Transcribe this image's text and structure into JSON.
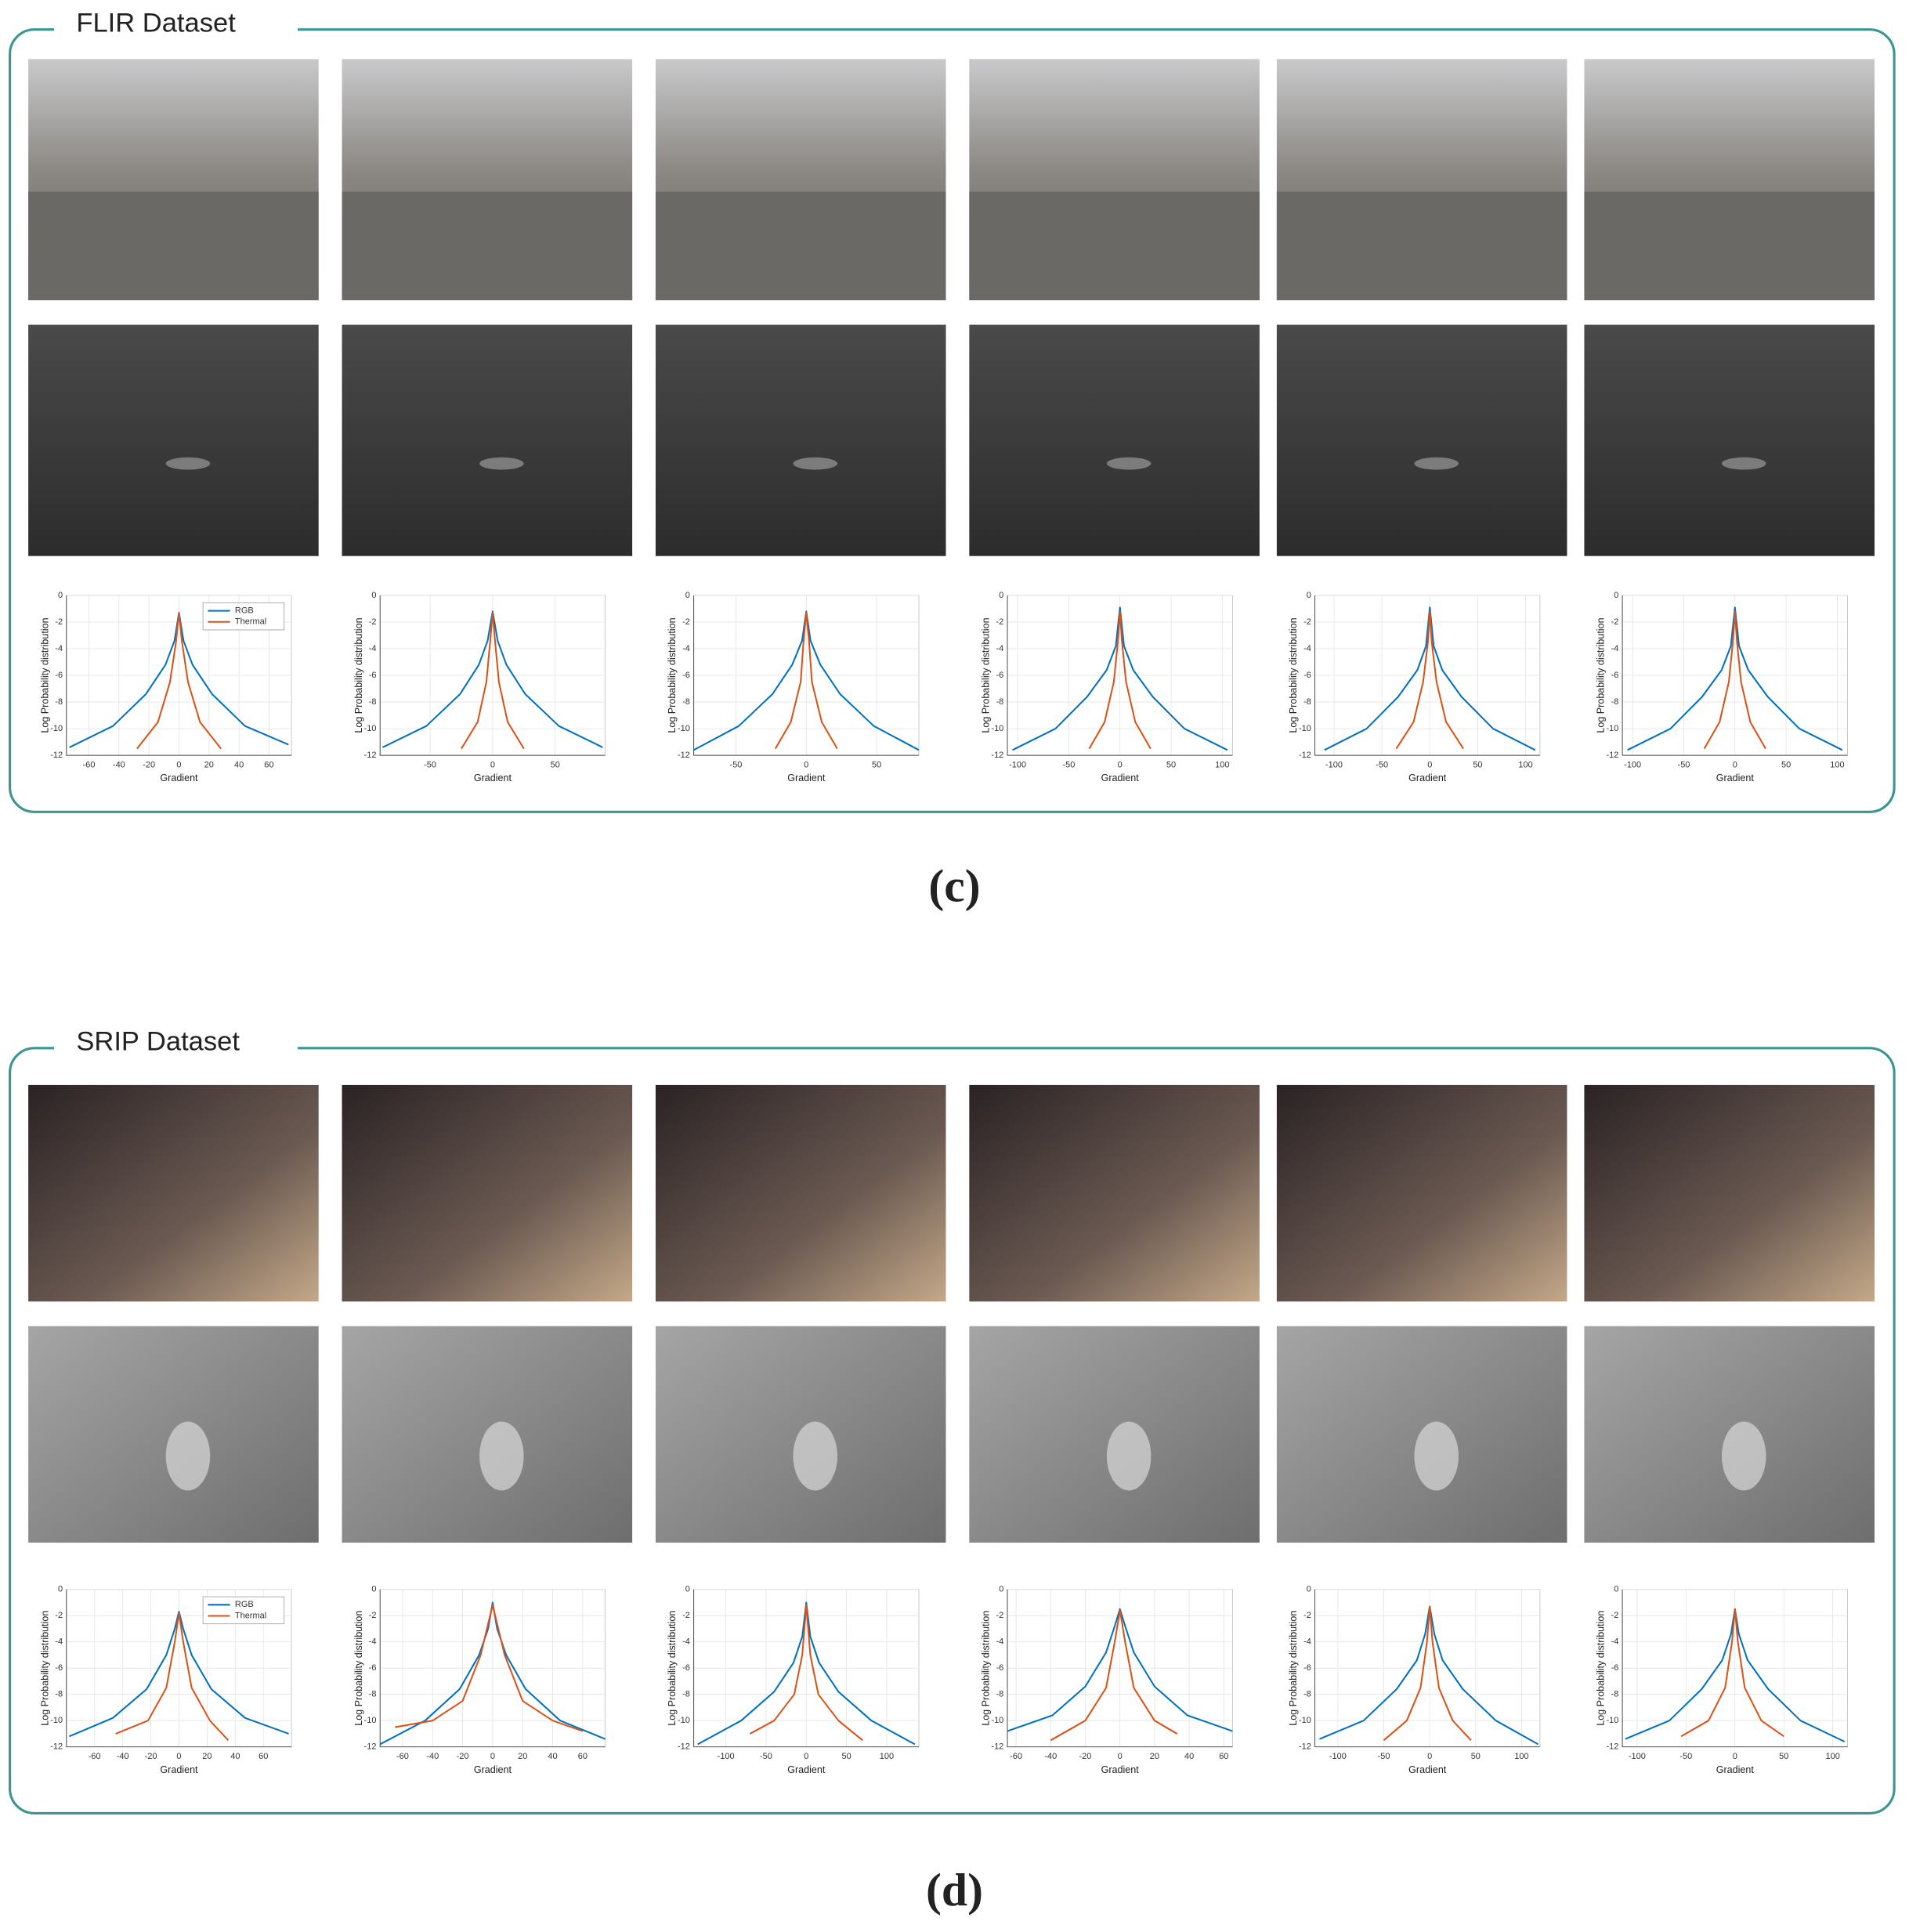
{
  "panels": [
    {
      "title": "FLIR Dataset",
      "caption": "(c)"
    },
    {
      "title": "SRIP Dataset",
      "caption": "(d)"
    }
  ],
  "chart_data": [
    {
      "type": "line",
      "y_label": "Log Probability distribution",
      "x_label": "Gradient",
      "legend": "northeast",
      "xlim": [
        -75,
        75
      ],
      "xticks": [
        -60,
        -40,
        -20,
        0,
        20,
        40,
        60
      ],
      "ylim": [
        -12,
        0
      ],
      "yticks": [
        0,
        -2,
        -4,
        -6,
        -8,
        -10,
        -12
      ],
      "grid": true,
      "series": [
        {
          "name": "RGB",
          "color": "#0072BD",
          "x": [
            -73,
            -44,
            -22,
            -9,
            -3,
            0,
            3,
            9,
            22,
            44,
            73
          ],
          "values": [
            -11.4,
            -9.8,
            -7.4,
            -5.2,
            -3.4,
            -1.3,
            -3.4,
            -5.2,
            -7.4,
            -9.8,
            -11.2
          ]
        },
        {
          "name": "Thermal",
          "color": "#D95319",
          "x": [
            -28,
            -14,
            -6,
            -2,
            0,
            2,
            6,
            14,
            28
          ],
          "values": [
            -11.5,
            -9.5,
            -6.5,
            -3.5,
            -1.3,
            -3.5,
            -6.5,
            -9.5,
            -11.5
          ]
        }
      ]
    },
    {
      "type": "line",
      "y_label": "Log Probability distribution",
      "x_label": "Gradient",
      "xlim": [
        -90,
        90
      ],
      "xticks": [
        -50,
        0,
        50
      ],
      "ylim": [
        -12,
        0
      ],
      "yticks": [
        0,
        -2,
        -4,
        -6,
        -8,
        -10,
        -12
      ],
      "grid": true,
      "series": [
        {
          "name": "RGB",
          "color": "#0072BD",
          "x": [
            -88,
            -53,
            -26,
            -11,
            -4,
            0,
            4,
            11,
            26,
            53,
            88
          ],
          "values": [
            -11.4,
            -9.8,
            -7.4,
            -5.2,
            -3.4,
            -1.2,
            -3.4,
            -5.2,
            -7.4,
            -9.8,
            -11.4
          ]
        },
        {
          "name": "Thermal",
          "color": "#D95319",
          "x": [
            -25,
            -12,
            -5,
            -2,
            0,
            2,
            5,
            12,
            25
          ],
          "values": [
            -11.5,
            -9.5,
            -6.5,
            -3.5,
            -1.3,
            -3.5,
            -6.5,
            -9.5,
            -11.5
          ]
        }
      ]
    },
    {
      "type": "line",
      "y_label": "Log Probability distribution",
      "x_label": "Gradient",
      "xlim": [
        -80,
        80
      ],
      "xticks": [
        -50,
        0,
        50
      ],
      "ylim": [
        -12,
        0
      ],
      "yticks": [
        0,
        -2,
        -4,
        -6,
        -8,
        -10,
        -12
      ],
      "grid": true,
      "series": [
        {
          "name": "RGB",
          "color": "#0072BD",
          "x": [
            -80,
            -48,
            -24,
            -10,
            -3,
            0,
            3,
            10,
            24,
            48,
            80
          ],
          "values": [
            -11.6,
            -9.8,
            -7.4,
            -5.2,
            -3.4,
            -1.2,
            -3.4,
            -5.2,
            -7.4,
            -9.8,
            -11.6
          ]
        },
        {
          "name": "Thermal",
          "color": "#D95319",
          "x": [
            -22,
            -11,
            -4,
            -2,
            0,
            2,
            4,
            11,
            22
          ],
          "values": [
            -11.5,
            -9.5,
            -6.5,
            -3.5,
            -1.3,
            -3.5,
            -6.5,
            -9.5,
            -11.5
          ]
        }
      ]
    },
    {
      "type": "line",
      "y_label": "Log Probability distribution",
      "x_label": "Gradient",
      "xlim": [
        -110,
        110
      ],
      "xticks": [
        -100,
        -50,
        0,
        50,
        100
      ],
      "ylim": [
        -12,
        0
      ],
      "yticks": [
        0,
        -2,
        -4,
        -6,
        -8,
        -10,
        -12
      ],
      "grid": true,
      "series": [
        {
          "name": "RGB",
          "color": "#0072BD",
          "x": [
            -105,
            -63,
            -32,
            -13,
            -4,
            0,
            4,
            13,
            32,
            63,
            105
          ],
          "values": [
            -11.6,
            -10,
            -7.6,
            -5.6,
            -3.8,
            -0.9,
            -3.8,
            -5.6,
            -7.6,
            -10,
            -11.6
          ]
        },
        {
          "name": "Thermal",
          "color": "#D95319",
          "x": [
            -30,
            -15,
            -6,
            -2,
            0,
            2,
            6,
            15,
            30
          ],
          "values": [
            -11.5,
            -9.5,
            -6.5,
            -3.5,
            -1.2,
            -3.5,
            -6.5,
            -9.5,
            -11.5
          ]
        }
      ]
    },
    {
      "type": "line",
      "y_label": "Log Probability distribution",
      "x_label": "Gradient",
      "xlim": [
        -120,
        115
      ],
      "xticks": [
        -100,
        -50,
        0,
        50,
        100
      ],
      "ylim": [
        -12,
        0
      ],
      "yticks": [
        0,
        -2,
        -4,
        -6,
        -8,
        -10,
        -12
      ],
      "grid": true,
      "series": [
        {
          "name": "RGB",
          "color": "#0072BD",
          "x": [
            -110,
            -66,
            -33,
            -13,
            -4,
            0,
            4,
            13,
            33,
            66,
            110
          ],
          "values": [
            -11.6,
            -10,
            -7.6,
            -5.6,
            -3.8,
            -0.9,
            -3.8,
            -5.6,
            -7.6,
            -10,
            -11.6
          ]
        },
        {
          "name": "Thermal",
          "color": "#D95319",
          "x": [
            -35,
            -17,
            -7,
            -2,
            0,
            2,
            7,
            17,
            35
          ],
          "values": [
            -11.5,
            -9.5,
            -6.5,
            -3.5,
            -1.2,
            -3.5,
            -6.5,
            -9.5,
            -11.5
          ]
        }
      ]
    },
    {
      "type": "line",
      "y_label": "Log Probability distribution",
      "x_label": "Gradient",
      "xlim": [
        -110,
        110
      ],
      "xticks": [
        -100,
        -50,
        0,
        50,
        100
      ],
      "ylim": [
        -12,
        0
      ],
      "yticks": [
        0,
        -2,
        -4,
        -6,
        -8,
        -10,
        -12
      ],
      "grid": true,
      "series": [
        {
          "name": "RGB",
          "color": "#0072BD",
          "x": [
            -105,
            -63,
            -32,
            -13,
            -4,
            0,
            4,
            13,
            32,
            63,
            105
          ],
          "values": [
            -11.6,
            -10,
            -7.6,
            -5.6,
            -3.8,
            -0.9,
            -3.8,
            -5.6,
            -7.6,
            -10,
            -11.6
          ]
        },
        {
          "name": "Thermal",
          "color": "#D95319",
          "x": [
            -30,
            -15,
            -6,
            -2,
            0,
            2,
            6,
            15,
            30
          ],
          "values": [
            -11.5,
            -9.5,
            -6.5,
            -3.5,
            -1.2,
            -3.5,
            -6.5,
            -9.5,
            -11.5
          ]
        }
      ]
    },
    {
      "type": "line",
      "y_label": "Log Probability distribution",
      "x_label": "Gradient",
      "legend": "northeast",
      "xlim": [
        -80,
        80
      ],
      "xticks": [
        -60,
        -40,
        -20,
        0,
        20,
        40,
        60
      ],
      "ylim": [
        -12,
        0
      ],
      "yticks": [
        0,
        -2,
        -4,
        -6,
        -8,
        -10,
        -12
      ],
      "grid": true,
      "series": [
        {
          "name": "RGB",
          "color": "#0072BD",
          "x": [
            -78,
            -47,
            -23,
            -9,
            -3,
            0,
            3,
            9,
            23,
            47,
            78
          ],
          "values": [
            -11.2,
            -9.8,
            -7.6,
            -5,
            -3,
            -1.7,
            -3,
            -5,
            -7.6,
            -9.8,
            -11
          ]
        },
        {
          "name": "Thermal",
          "color": "#D95319",
          "x": [
            -45,
            -22,
            -9,
            -3,
            0,
            3,
            9,
            22,
            35
          ],
          "values": [
            -11,
            -10,
            -7.5,
            -4,
            -1.8,
            -4,
            -7.5,
            -10,
            -11.5
          ]
        }
      ]
    },
    {
      "type": "line",
      "y_label": "Log Probability distribution",
      "x_label": "Gradient",
      "xlim": [
        -75,
        75
      ],
      "xticks": [
        -60,
        -40,
        -20,
        0,
        20,
        40,
        60
      ],
      "ylim": [
        -12,
        0
      ],
      "yticks": [
        0,
        -2,
        -4,
        -6,
        -8,
        -10,
        -12
      ],
      "grid": true,
      "series": [
        {
          "name": "RGB",
          "color": "#0072BD",
          "x": [
            -75,
            -45,
            -22,
            -9,
            -3,
            0,
            3,
            9,
            22,
            45,
            75
          ],
          "values": [
            -11.8,
            -10,
            -7.6,
            -5,
            -3,
            -1,
            -3,
            -5,
            -7.6,
            -10,
            -11.4
          ]
        },
        {
          "name": "Thermal",
          "color": "#D95319",
          "x": [
            -65,
            -40,
            -20,
            -8,
            0,
            8,
            20,
            40,
            60
          ],
          "values": [
            -10.5,
            -10,
            -8.5,
            -5,
            -1.2,
            -5,
            -8.5,
            -10,
            -10.8
          ]
        }
      ]
    },
    {
      "type": "line",
      "y_label": "Log Probability distribution",
      "x_label": "Gradient",
      "xlim": [
        -140,
        140
      ],
      "xticks": [
        -100,
        -50,
        0,
        50,
        100
      ],
      "ylim": [
        -12,
        0
      ],
      "yticks": [
        0,
        -2,
        -4,
        -6,
        -8,
        -10,
        -12
      ],
      "grid": true,
      "series": [
        {
          "name": "RGB",
          "color": "#0072BD",
          "x": [
            -135,
            -81,
            -40,
            -16,
            -5,
            0,
            5,
            16,
            40,
            81,
            135
          ],
          "values": [
            -11.8,
            -10,
            -7.8,
            -5.6,
            -3.6,
            -1,
            -3.6,
            -5.6,
            -7.8,
            -10,
            -11.8
          ]
        },
        {
          "name": "Thermal",
          "color": "#D95319",
          "x": [
            -70,
            -40,
            -15,
            -5,
            0,
            5,
            15,
            40,
            70
          ],
          "values": [
            -11,
            -10,
            -8,
            -5,
            -1.2,
            -5,
            -8,
            -10,
            -11.5
          ]
        }
      ]
    },
    {
      "type": "line",
      "y_label": "Log Probability distribution",
      "x_label": "Gradient",
      "xlim": [
        -65,
        65
      ],
      "xticks": [
        -60,
        -40,
        -20,
        0,
        20,
        40,
        60
      ],
      "ylim": [
        -12,
        0
      ],
      "yticks": [
        0,
        -2,
        -4,
        -6,
        -8,
        -10,
        -12
      ],
      "grid": true,
      "series": [
        {
          "name": "RGB",
          "color": "#0072BD",
          "x": [
            -65,
            -39,
            -20,
            -8,
            -3,
            0,
            3,
            8,
            20,
            39,
            65
          ],
          "values": [
            -10.8,
            -9.6,
            -7.4,
            -4.8,
            -2.8,
            -1.5,
            -2.8,
            -4.8,
            -7.4,
            -9.6,
            -10.8
          ]
        },
        {
          "name": "Thermal",
          "color": "#D95319",
          "x": [
            -40,
            -20,
            -8,
            -3,
            0,
            3,
            8,
            20,
            33
          ],
          "values": [
            -11.5,
            -10,
            -7.5,
            -4,
            -1.6,
            -4,
            -7.5,
            -10,
            -11
          ]
        }
      ]
    },
    {
      "type": "line",
      "y_label": "Log Probability distribution",
      "x_label": "Gradient",
      "xlim": [
        -125,
        120
      ],
      "xticks": [
        -100,
        -50,
        0,
        50,
        100
      ],
      "ylim": [
        -12,
        0
      ],
      "yticks": [
        0,
        -2,
        -4,
        -6,
        -8,
        -10,
        -12
      ],
      "grid": true,
      "series": [
        {
          "name": "RGB",
          "color": "#0072BD",
          "x": [
            -120,
            -72,
            -36,
            -14,
            -5,
            0,
            5,
            14,
            36,
            72,
            118
          ],
          "values": [
            -11.4,
            -10,
            -7.6,
            -5.4,
            -3.4,
            -1.3,
            -3.4,
            -5.4,
            -7.6,
            -10,
            -11.8
          ]
        },
        {
          "name": "Thermal",
          "color": "#D95319",
          "x": [
            -50,
            -25,
            -10,
            -3,
            0,
            3,
            10,
            25,
            45
          ],
          "values": [
            -11.5,
            -10,
            -7.5,
            -4,
            -1.3,
            -4,
            -7.5,
            -10,
            -11.5
          ]
        }
      ]
    },
    {
      "type": "line",
      "y_label": "Log Probability distribution",
      "x_label": "Gradient",
      "xlim": [
        -115,
        115
      ],
      "xticks": [
        -100,
        -50,
        0,
        50,
        100
      ],
      "ylim": [
        -12,
        0
      ],
      "yticks": [
        0,
        -2,
        -4,
        -6,
        -8,
        -10,
        -12
      ],
      "grid": true,
      "series": [
        {
          "name": "RGB",
          "color": "#0072BD",
          "x": [
            -112,
            -67,
            -34,
            -13,
            -4,
            0,
            4,
            13,
            34,
            67,
            112
          ],
          "values": [
            -11.4,
            -10,
            -7.6,
            -5.4,
            -3.4,
            -1.5,
            -3.4,
            -5.4,
            -7.6,
            -10,
            -11.6
          ]
        },
        {
          "name": "Thermal",
          "color": "#D95319",
          "x": [
            -55,
            -27,
            -10,
            -3,
            0,
            3,
            10,
            27,
            50
          ],
          "values": [
            -11.2,
            -10,
            -7.5,
            -4,
            -1.5,
            -4,
            -7.5,
            -10,
            -11.2
          ]
        }
      ]
    }
  ]
}
